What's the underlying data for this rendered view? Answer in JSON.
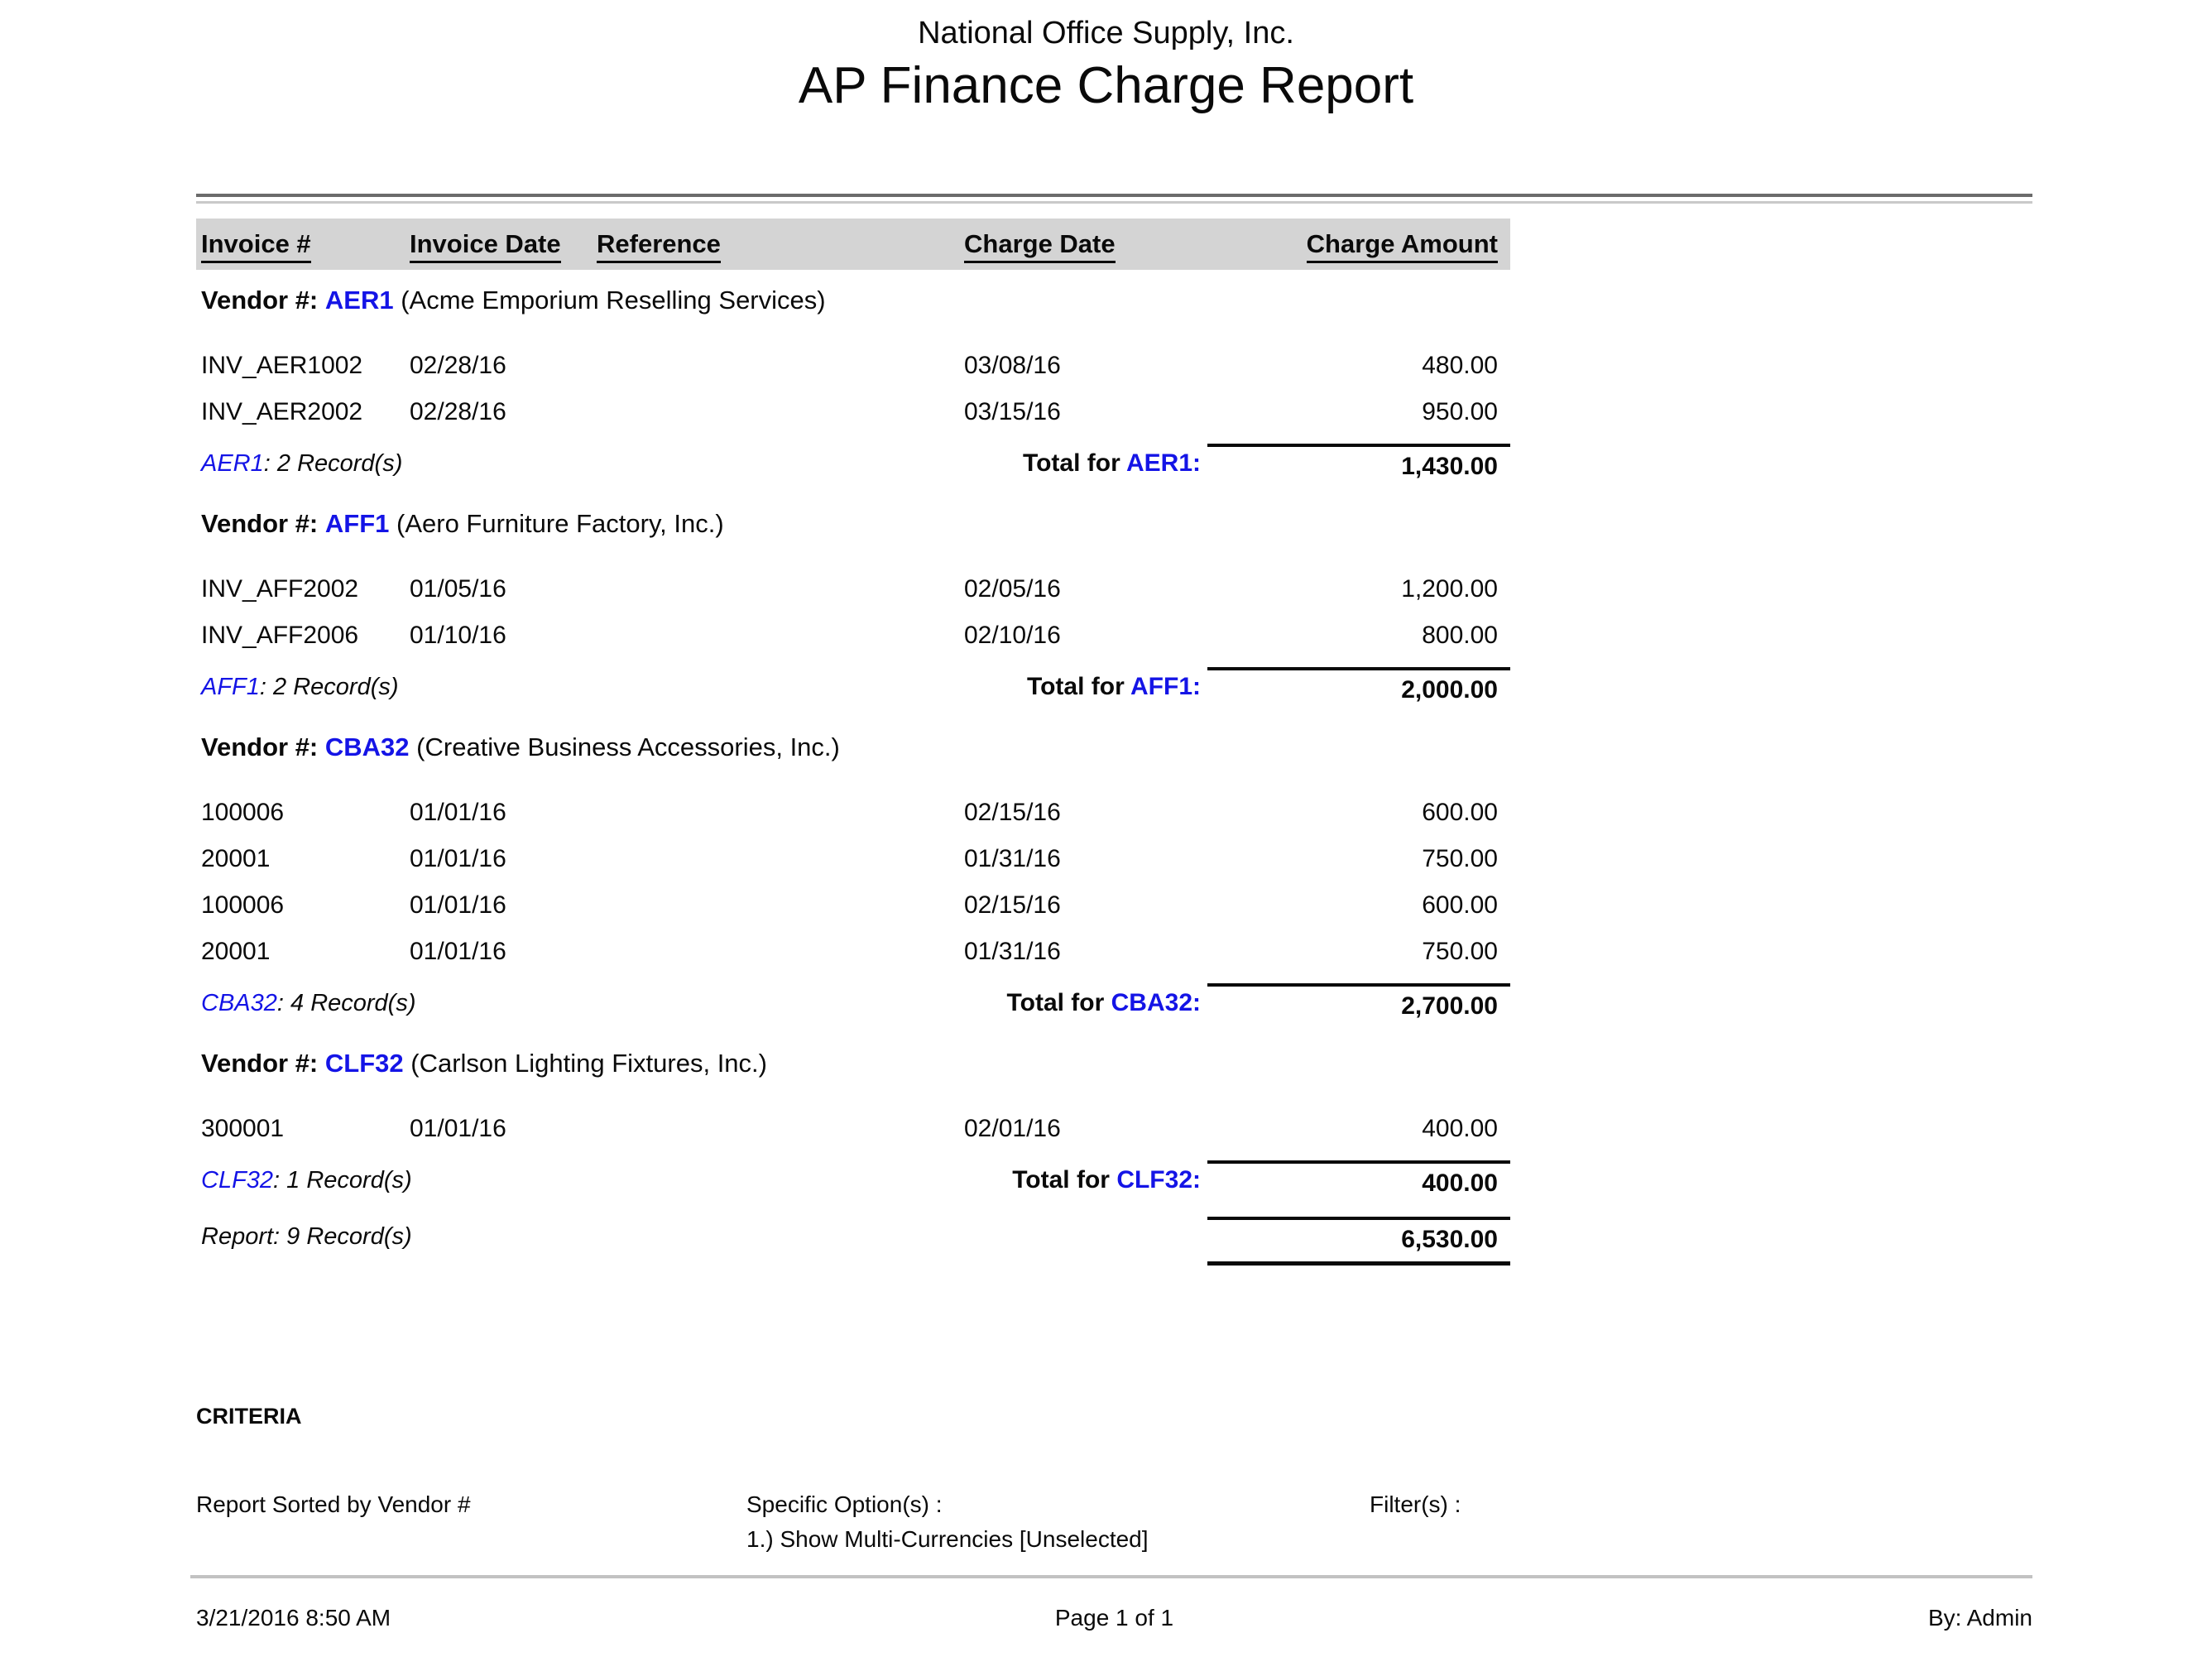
{
  "report": {
    "company": "National Office Supply, Inc.",
    "title": "AP Finance Charge Report",
    "columns": [
      "Invoice #",
      "Invoice Date",
      "Reference",
      "Charge Date",
      "Charge Amount"
    ],
    "vendor_label": "Vendor #:",
    "total_label": "Total for",
    "groups": [
      {
        "vendor_code": "AER1",
        "vendor_name": "(Acme Emporium Reselling Services)",
        "rows": [
          {
            "invoice": "INV_AER1002",
            "invoice_date": "02/28/16",
            "reference": "",
            "charge_date": "03/08/16",
            "amount": "480.00"
          },
          {
            "invoice": "INV_AER2002",
            "invoice_date": "02/28/16",
            "reference": "",
            "charge_date": "03/15/16",
            "amount": "950.00"
          }
        ],
        "record_count": "2 Record(s)",
        "total_amount": "1,430.00"
      },
      {
        "vendor_code": "AFF1",
        "vendor_name": "(Aero Furniture Factory, Inc.)",
        "rows": [
          {
            "invoice": "INV_AFF2002",
            "invoice_date": "01/05/16",
            "reference": "",
            "charge_date": "02/05/16",
            "amount": "1,200.00"
          },
          {
            "invoice": "INV_AFF2006",
            "invoice_date": "01/10/16",
            "reference": "",
            "charge_date": "02/10/16",
            "amount": "800.00"
          }
        ],
        "record_count": "2 Record(s)",
        "total_amount": "2,000.00"
      },
      {
        "vendor_code": "CBA32",
        "vendor_name": "(Creative Business Accessories, Inc.)",
        "rows": [
          {
            "invoice": "100006",
            "invoice_date": "01/01/16",
            "reference": "",
            "charge_date": "02/15/16",
            "amount": "600.00"
          },
          {
            "invoice": "20001",
            "invoice_date": "01/01/16",
            "reference": "",
            "charge_date": "01/31/16",
            "amount": "750.00"
          },
          {
            "invoice": "100006",
            "invoice_date": "01/01/16",
            "reference": "",
            "charge_date": "02/15/16",
            "amount": "600.00"
          },
          {
            "invoice": "20001",
            "invoice_date": "01/01/16",
            "reference": "",
            "charge_date": "01/31/16",
            "amount": "750.00"
          }
        ],
        "record_count": "4 Record(s)",
        "total_amount": "2,700.00"
      },
      {
        "vendor_code": "CLF32",
        "vendor_name": "(Carlson Lighting Fixtures, Inc.)",
        "rows": [
          {
            "invoice": "300001",
            "invoice_date": "01/01/16",
            "reference": "",
            "charge_date": "02/01/16",
            "amount": "400.00"
          }
        ],
        "record_count": "1 Record(s)",
        "total_amount": "400.00"
      }
    ],
    "summary": {
      "label": "Report:",
      "records": "9 Record(s)",
      "total": "6,530.00"
    },
    "criteria": {
      "heading": "CRITERIA",
      "sorted_by": "Report Sorted by Vendor #",
      "specific_options_label": "Specific Option(s) :",
      "specific_options": [
        "1.) Show Multi-Currencies [Unselected]"
      ],
      "filters_label": "Filter(s) :"
    },
    "footer": {
      "datetime": "3/21/2016 8:50 AM",
      "page": "Page 1 of 1",
      "by": "By: Admin"
    },
    "colors": {
      "accent_blue": "#1414e6",
      "header_bar_bg": "#d4d4d4",
      "rule_dark": "#6b6b6b",
      "rule_light": "#c9c9c9"
    }
  }
}
